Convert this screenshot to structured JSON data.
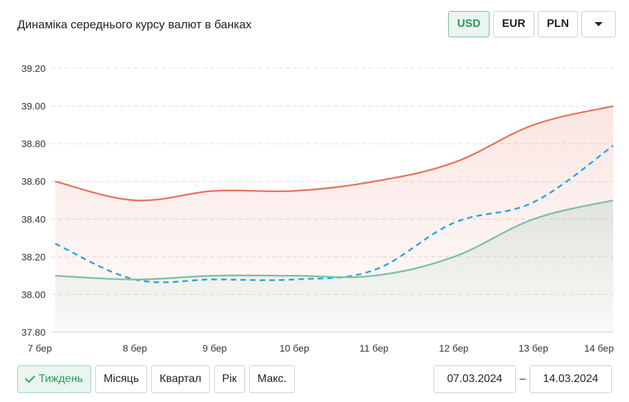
{
  "header": {
    "title": "Динаміка середнього курсу валют в банках"
  },
  "currencies": {
    "usd": "USD",
    "eur": "EUR",
    "pln": "PLN",
    "active": "USD"
  },
  "periods": {
    "week": "Тиждень",
    "month": "Місяць",
    "quarter": "Квартал",
    "year": "Рік",
    "max": "Макс.",
    "active": "Тиждень"
  },
  "date_range": {
    "from": "07.03.2024",
    "separator": "–",
    "to": "14.03.2024"
  },
  "colors": {
    "sell": "#e8735d",
    "buy": "#7cbfa4",
    "nbu": "#2aa5dd",
    "active_green": "#2e9a5f"
  },
  "chart_data": {
    "type": "line",
    "categories": [
      "7 бер",
      "8 бер",
      "9 бер",
      "10 бер",
      "11 бер",
      "12 бер",
      "13 бер",
      "14 бер"
    ],
    "yticks": [
      "37.80",
      "38.00",
      "38.20",
      "38.40",
      "38.60",
      "38.80",
      "39.00",
      "39.20"
    ],
    "ylim": [
      37.8,
      39.2
    ],
    "grid": true,
    "series": [
      {
        "key": "sell",
        "style": "solid-area",
        "values": [
          38.6,
          38.5,
          38.55,
          38.55,
          38.6,
          38.7,
          38.9,
          39.0
        ]
      },
      {
        "key": "nbu",
        "style": "dashed",
        "values": [
          38.27,
          38.08,
          38.08,
          38.08,
          38.13,
          38.38,
          38.49,
          38.79
        ]
      },
      {
        "key": "buy",
        "style": "solid-area",
        "values": [
          38.1,
          38.08,
          38.1,
          38.1,
          38.1,
          38.2,
          38.4,
          38.5
        ]
      }
    ]
  }
}
